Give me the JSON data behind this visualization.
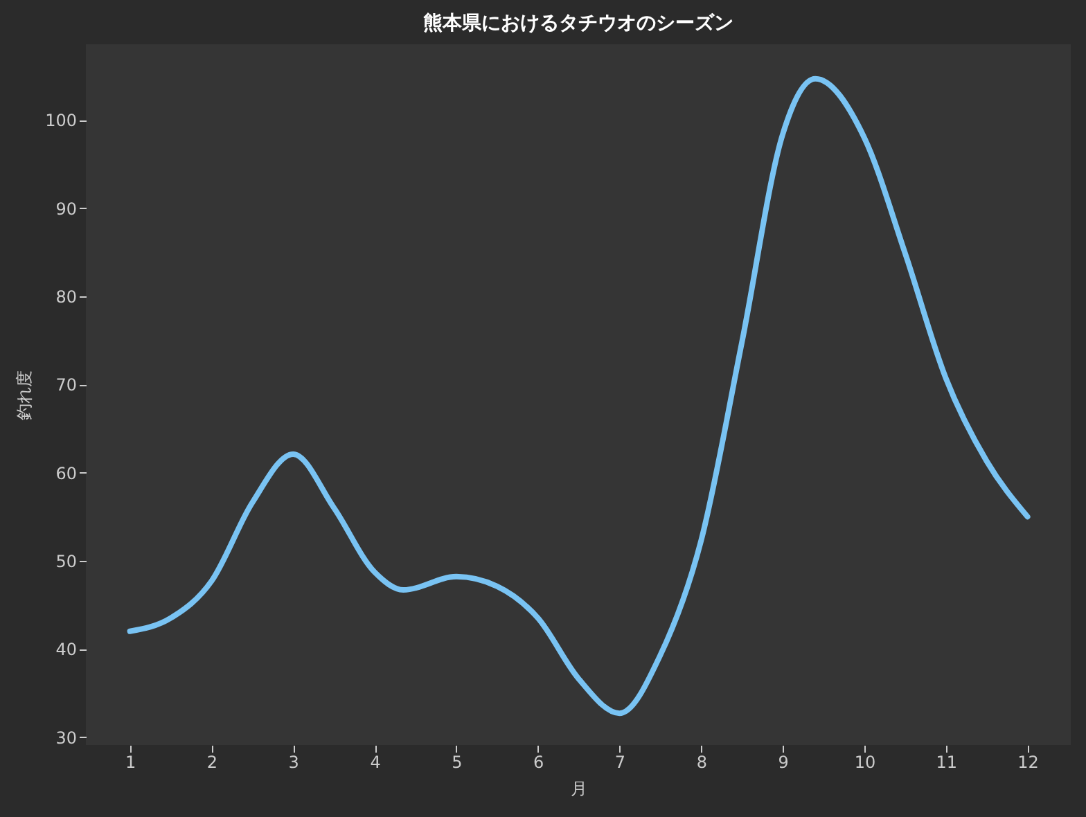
{
  "chart_data": {
    "type": "line",
    "title": "熊本県におけるタチウオのシーズン",
    "xlabel": "月",
    "ylabel": "釣れ度",
    "x": [
      1,
      1.5,
      2,
      2.5,
      3,
      3.5,
      4,
      4.35,
      5,
      5.5,
      6,
      6.5,
      7,
      7.5,
      8,
      8.5,
      9,
      9.4,
      10,
      10.5,
      11,
      11.5,
      12
    ],
    "series": [
      {
        "color": "#79c3f3",
        "values": [
          42,
          43.5,
          47.7,
          56.6,
          62.1,
          56,
          48.7,
          46.7,
          48.2,
          47.1,
          43.5,
          36.6,
          32.7,
          39.3,
          52.3,
          74.8,
          98.4,
          104.7,
          98,
          84.9,
          70.7,
          61.3,
          55
        ]
      }
    ],
    "xlim": [
      0.46,
      12.53
    ],
    "xticks": [
      1,
      2,
      3,
      4,
      5,
      6,
      7,
      8,
      9,
      10,
      11,
      12
    ],
    "ylim": [
      29.1,
      108.6
    ],
    "yticks": [
      30,
      40,
      50,
      60,
      70,
      80,
      90,
      100
    ],
    "grid": false,
    "legend": false,
    "marker": "none",
    "line_style": "solid"
  }
}
